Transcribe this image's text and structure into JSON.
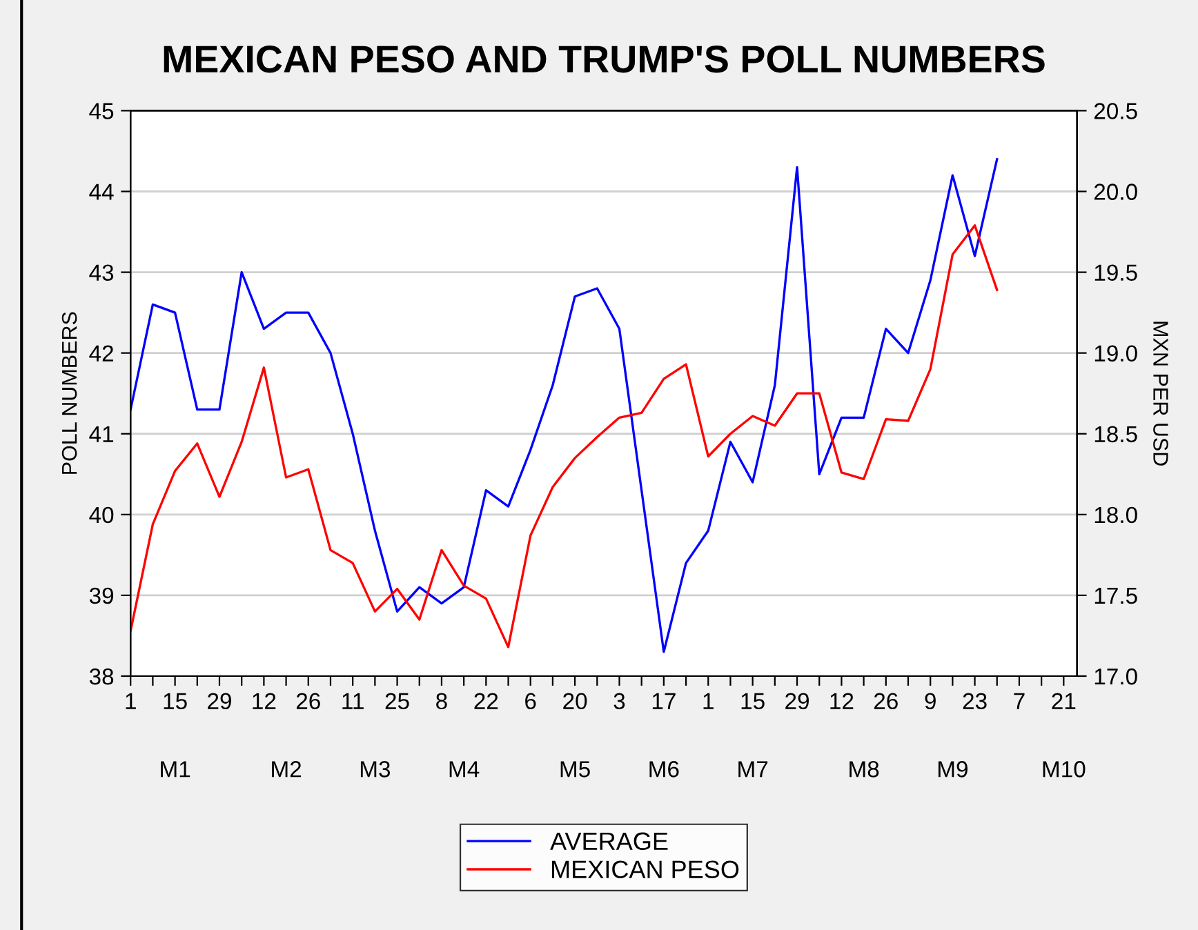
{
  "chart_data": {
    "type": "line",
    "title": "MEXICAN PESO AND TRUMP'S POLL NUMBERS",
    "ylabel": "POLL NUMBERS",
    "y2label": "MXN PER USD",
    "categories": [
      "1",
      null,
      "15",
      null,
      "29",
      null,
      "12",
      null,
      "26",
      null,
      "11",
      null,
      "25",
      null,
      "8",
      null,
      "22",
      null,
      "6",
      null,
      "20",
      null,
      "3",
      null,
      "17",
      null,
      "1",
      null,
      "15",
      null,
      "29",
      null,
      "12",
      null,
      "26",
      null,
      "9",
      null,
      "23",
      null,
      "7",
      null,
      "21"
    ],
    "series": [
      {
        "name": "AVERAGE",
        "color": "#0000ff",
        "values": [
          41.3,
          42.6,
          42.5,
          41.3,
          41.3,
          43.0,
          42.3,
          42.5,
          42.5,
          42.0,
          41.0,
          39.8,
          38.8,
          39.1,
          38.9,
          39.1,
          40.3,
          40.1,
          40.8,
          41.6,
          42.7,
          42.8,
          42.3,
          40.3,
          38.3,
          39.4,
          39.8,
          40.9,
          40.4,
          41.6,
          44.3,
          40.5,
          41.2,
          41.2,
          42.3,
          42.0,
          42.9,
          44.2,
          43.2,
          44.4,
          null,
          null,
          null
        ]
      },
      {
        "name": "MEXICAN PESO",
        "color": "#ff0000",
        "axis": "y2",
        "values": [
          17.28,
          17.94,
          18.27,
          18.44,
          18.11,
          18.45,
          18.91,
          18.23,
          18.28,
          17.78,
          17.7,
          17.4,
          17.54,
          17.35,
          17.78,
          17.56,
          17.48,
          17.18,
          17.87,
          18.17,
          18.35,
          18.48,
          18.6,
          18.63,
          18.84,
          18.93,
          18.36,
          18.5,
          18.61,
          18.55,
          18.75,
          18.75,
          18.26,
          18.22,
          18.59,
          18.58,
          18.9,
          19.61,
          19.79,
          19.39,
          null,
          null,
          null
        ]
      }
    ],
    "ylim": [
      38,
      45
    ],
    "yticks": [
      38,
      39,
      40,
      41,
      42,
      43,
      44,
      45
    ],
    "y2lim": [
      17.0,
      20.5
    ],
    "y2ticks": [
      {
        "value": 17,
        "label": "17.0"
      },
      {
        "value": 17.5,
        "label": "17.5"
      },
      {
        "value": 18,
        "label": "18.0"
      },
      {
        "value": 18.5,
        "label": "18.5"
      },
      {
        "value": 19,
        "label": "19.0"
      },
      {
        "value": 19.5,
        "label": "19.5"
      },
      {
        "value": 20,
        "label": "20.0"
      },
      {
        "value": 20.5,
        "label": "20.5"
      }
    ],
    "annotations": [
      "M1",
      "M2",
      "M3",
      "M4",
      "M5",
      "M6",
      "M7",
      "M8",
      "M9",
      "M10"
    ],
    "grid": "y",
    "legend": "bottom",
    "line_style": "solid"
  }
}
